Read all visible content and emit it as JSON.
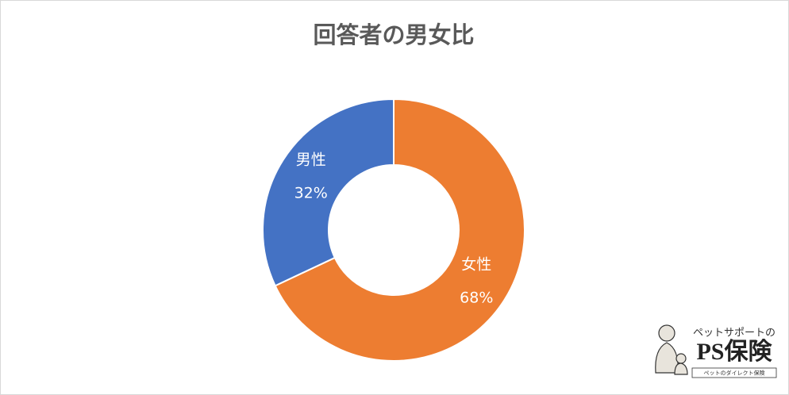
{
  "chart_data": {
    "type": "donut",
    "title": "回答者の男女比",
    "categories": [
      "女性",
      "男性"
    ],
    "values": [
      68,
      32
    ],
    "value_labels": [
      "68%",
      "32%"
    ],
    "colors": [
      "#ed7d31",
      "#4472c4"
    ]
  },
  "logo": {
    "tagline": "ペットサポートの",
    "name": "PS保険",
    "subtitle": "ペットのダイレクト保険"
  }
}
